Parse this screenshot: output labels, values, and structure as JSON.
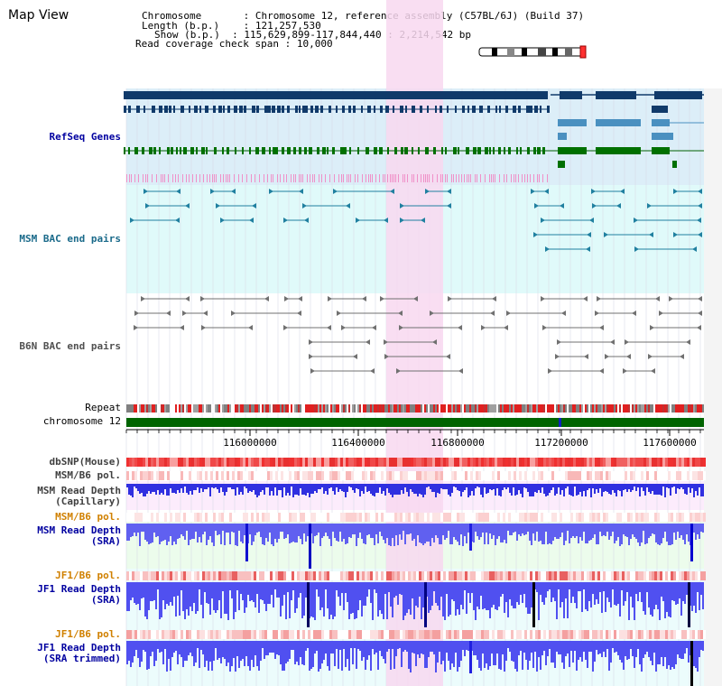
{
  "title": "Map View",
  "info": {
    "chromosome_key": "Chromosome",
    "chromosome_val": "Chromosome 12, reference assembly (C57BL/6J) (Build 37)",
    "length_key": "Length (b.p.)",
    "length_val": "121,257,530",
    "show_key": "Show (b.p.)",
    "show_val": "115,629,899-117,844,440 : 2,214,542 bp",
    "span_key": "Read coverage check span",
    "span_val": "10,000"
  },
  "tracks": {
    "refseq": "RefSeq Genes",
    "msm_bac": "MSM BAC end pairs",
    "b6n_bac": "B6N BAC end pairs",
    "repeat": "Repeat",
    "chromosome": "chromosome 12",
    "dbsnp": "dbSNP(Mouse)",
    "msm_b6_pol_1": "MSM/B6 pol.",
    "msm_depth_cap_1": "MSM Read Depth",
    "msm_depth_cap_2": "(Capillary)",
    "msm_b6_pol_2": "MSM/B6 pol.",
    "msm_depth_sra_1": "MSM Read Depth",
    "msm_depth_sra_2": "(SRA)",
    "jf1_b6_pol_1": "JF1/B6 pol.",
    "jf1_depth_sra_1": "JF1 Read Depth",
    "jf1_depth_sra_2": "(SRA)",
    "jf1_b6_pol_2": "JF1/B6 pol.",
    "jf1_depth_trim_1": "JF1 Read Depth",
    "jf1_depth_trim_2": "(SRA trimmed)"
  },
  "axis": {
    "ticks": [
      "116000000",
      "116400000",
      "116800000",
      "117200000",
      "117600000"
    ]
  },
  "colors": {
    "label_blue": "#0000a0",
    "label_teal": "#1a6a8a",
    "label_gray": "#505050",
    "label_orange": "#d08000",
    "highlight": "#f8d8f0"
  }
}
